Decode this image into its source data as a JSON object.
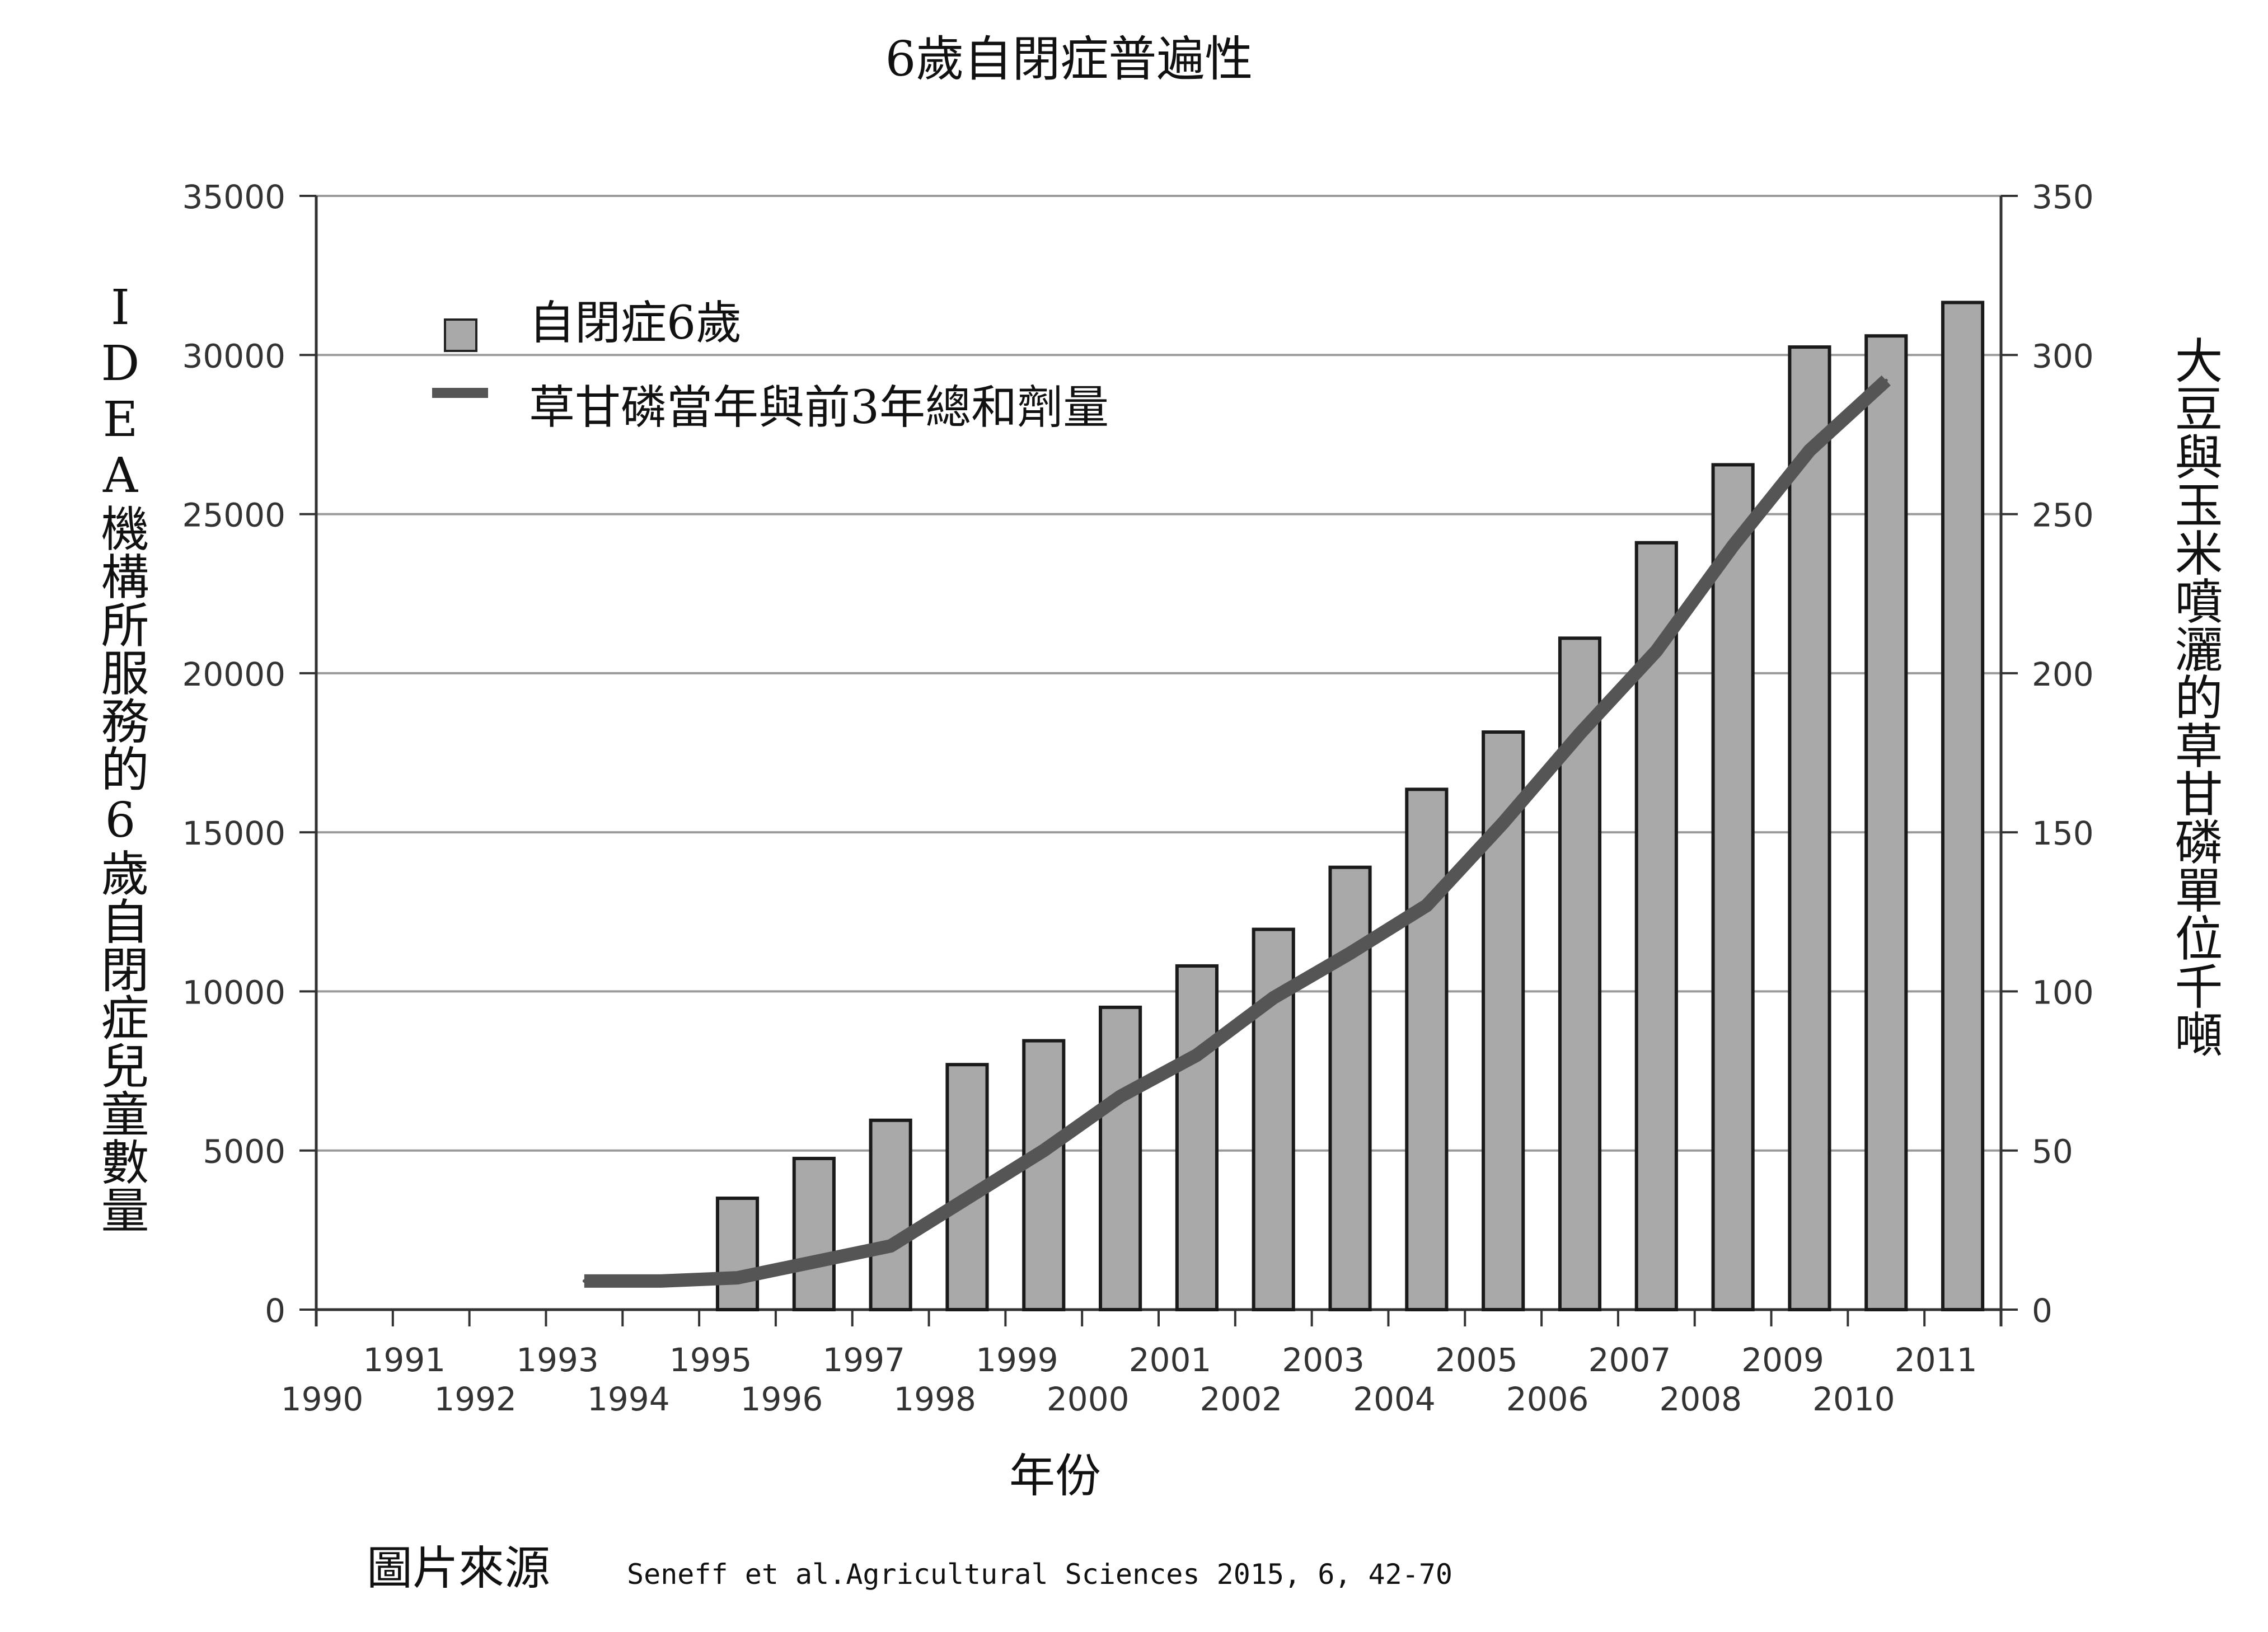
{
  "chart_data": {
    "type": "bar",
    "title": "6歲自閉症普遍性",
    "xlabel": "年份",
    "ylabel_left": "IDEA機構所服務的6歲自閉症兒童數量",
    "ylabel_right": "大豆與玉米噴灑的草甘磷單位千噸",
    "ylim_left": [
      0,
      35000
    ],
    "ylim_right": [
      0,
      350
    ],
    "yticks_left": [
      "0",
      "5000",
      "10000",
      "15000",
      "20000",
      "25000",
      "30000",
      "35000"
    ],
    "yticks_right": [
      "0",
      "50",
      "100",
      "150",
      "200",
      "250",
      "300",
      "350"
    ],
    "categories": [
      "1990",
      "1991",
      "1992",
      "1993",
      "1994",
      "1995",
      "1996",
      "1997",
      "1998",
      "1999",
      "2000",
      "2001",
      "2002",
      "2003",
      "2004",
      "2005",
      "2006",
      "2007",
      "2008",
      "2009",
      "2010",
      "2011"
    ],
    "grid": true,
    "legend_position": "top-left",
    "series": [
      {
        "name": "自閉症6歲",
        "type": "bar",
        "axis": "left",
        "color": "#a9a9a9",
        "values": [
          null,
          null,
          null,
          null,
          null,
          3500,
          4750,
          5950,
          7700,
          8450,
          9500,
          10800,
          11950,
          13900,
          16350,
          18150,
          21100,
          24100,
          26550,
          30250,
          30600,
          31650
        ]
      },
      {
        "name": "草甘磷當年與前3年總和劑量",
        "type": "line",
        "axis": "right",
        "color": "#555555",
        "values": [
          null,
          null,
          null,
          9,
          9,
          10,
          15,
          20,
          35,
          50,
          67,
          80,
          98,
          112,
          127,
          153,
          181,
          207,
          240,
          270,
          292,
          null
        ]
      }
    ],
    "source_label": "圖片來源",
    "source_text": "Seneff et al.Agricultural Sciences 2015, 6, 42-70"
  }
}
